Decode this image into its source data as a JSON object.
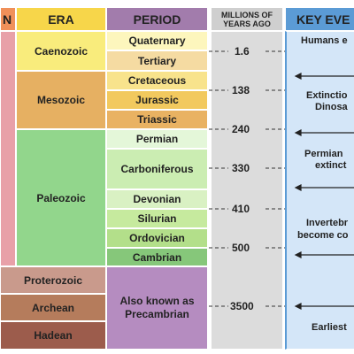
{
  "header": {
    "eon": "N",
    "era": "ERA",
    "period": "PERIOD",
    "years": "MILLIONS OF YEARS AGO",
    "events": "KEY EVE"
  },
  "eras": [
    {
      "label": "Caenozoic"
    },
    {
      "label": "Mesozoic"
    },
    {
      "label": "Paleozoic"
    }
  ],
  "periods": [
    "Quaternary",
    "Tertiary",
    "Cretaceous",
    "Jurassic",
    "Triassic",
    "Permian",
    "Carboniferous",
    "Devonian",
    "Silurian",
    "Ordovician",
    "Cambrian"
  ],
  "eons": [
    "Proterozoic",
    "Archean",
    "Hadean"
  ],
  "precambrian": "Also known as Precambrian",
  "years": [
    "1.6",
    "138",
    "240",
    "330",
    "410",
    "500",
    "3500"
  ],
  "events": [
    "Humans e",
    "Extinctio",
    "Dinosa",
    "Permian",
    "extinct",
    "Invertebr",
    "become co",
    "Earliest"
  ]
}
